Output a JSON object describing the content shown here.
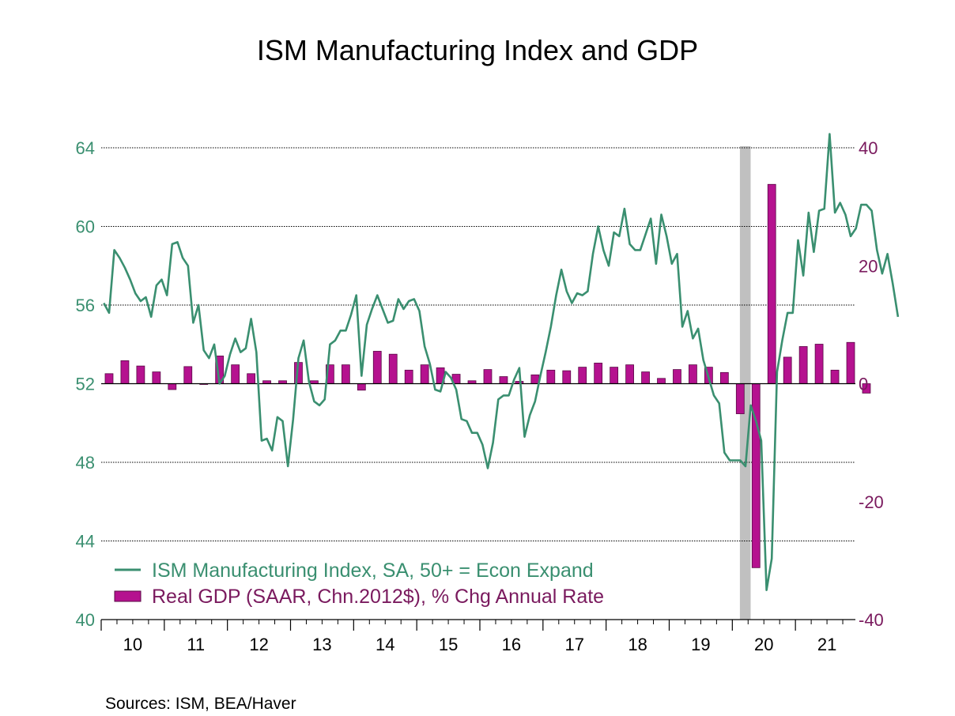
{
  "colors": {
    "ism": "#3a8f70",
    "gdp_fill": "#b5128f",
    "gdp_stroke": "#5a0a46",
    "right_axis": "#7a1a5e",
    "recession": "#c0c0c0",
    "grid": "#000000"
  },
  "chart_data": {
    "type": "line+bar",
    "title": "ISM Manufacturing Index and GDP",
    "source": "Sources:  ISM, BEA/Haver",
    "x_tick_labels": [
      "10",
      "11",
      "12",
      "13",
      "14",
      "15",
      "16",
      "17",
      "18",
      "19",
      "20",
      "21"
    ],
    "x_range_years": [
      2010.0,
      2021.95
    ],
    "recession": {
      "start": 2020.12,
      "end": 2020.29
    },
    "left_axis": {
      "ticks": [
        "40",
        "44",
        "48",
        "52",
        "56",
        "60",
        "64"
      ],
      "range": [
        40,
        64
      ]
    },
    "right_axis": {
      "ticks": [
        "-40",
        "-20",
        "0",
        "20",
        "40"
      ],
      "range": [
        -40,
        40
      ]
    },
    "series": [
      {
        "name": "ISM Manufacturing Index, SA, 50+ = Econ Expand",
        "axis": "left",
        "type": "line",
        "start": 2010.0,
        "step_months": 1,
        "values": [
          56.1,
          55.6,
          58.8,
          58.4,
          57.9,
          57.3,
          56.6,
          56.2,
          56.4,
          55.4,
          57.0,
          57.3,
          56.5,
          59.1,
          59.2,
          58.4,
          58.0,
          55.1,
          56.0,
          53.7,
          53.3,
          54.0,
          52.0,
          52.4,
          53.5,
          54.3,
          53.6,
          53.8,
          55.3,
          53.6,
          49.1,
          49.2,
          48.6,
          50.3,
          50.1,
          47.8,
          50.2,
          53.3,
          54.2,
          52.1,
          51.1,
          50.9,
          51.2,
          54.0,
          54.2,
          54.7,
          54.7,
          55.5,
          56.5,
          52.4,
          55.0,
          55.8,
          56.5,
          55.8,
          55.1,
          55.2,
          56.3,
          55.8,
          56.2,
          56.3,
          55.7,
          53.9,
          53.0,
          51.7,
          51.6,
          52.6,
          52.3,
          51.7,
          50.2,
          50.1,
          49.5,
          49.5,
          48.9,
          47.7,
          49.0,
          51.2,
          51.4,
          51.4,
          52.2,
          52.8,
          49.3,
          50.4,
          51.1,
          52.4,
          53.6,
          54.9,
          56.5,
          57.8,
          56.7,
          56.1,
          56.6,
          56.5,
          56.7,
          58.6,
          60.0,
          58.8,
          58.0,
          59.7,
          59.5,
          60.9,
          59.1,
          58.8,
          58.8,
          59.6,
          60.4,
          58.1,
          60.6,
          59.5,
          58.1,
          58.6,
          54.9,
          55.7,
          54.3,
          54.8,
          53.2,
          52.3,
          51.4,
          51.0,
          48.5,
          48.1,
          48.1,
          48.1,
          47.8,
          50.9,
          50.1,
          49.1,
          41.5,
          43.1,
          52.6,
          54.2,
          55.6,
          55.6,
          59.3,
          57.5,
          60.7,
          58.7,
          60.8,
          60.9,
          64.7,
          60.7,
          61.2,
          60.6,
          59.5,
          59.9,
          61.1,
          61.1,
          60.8,
          58.8,
          57.6,
          58.6,
          57.1,
          55.4
        ]
      },
      {
        "name": "Real GDP (SAAR, Chn.2012$), % Chg Annual Rate",
        "axis": "right",
        "type": "bar",
        "start": 2010.0,
        "step_months": 3,
        "values": [
          1.7,
          3.9,
          3.0,
          2.0,
          -1.0,
          2.9,
          -0.1,
          4.7,
          3.2,
          1.7,
          0.5,
          0.5,
          3.6,
          0.5,
          3.2,
          3.2,
          -1.1,
          5.5,
          5.0,
          2.3,
          3.2,
          2.7,
          1.6,
          0.5,
          2.4,
          1.2,
          0.4,
          1.5,
          2.3,
          2.2,
          2.8,
          3.5,
          2.8,
          3.2,
          2.0,
          0.9,
          2.4,
          3.2,
          2.8,
          1.9,
          -5.1,
          -31.2,
          33.8,
          4.5,
          6.3,
          6.7,
          2.3,
          7.0,
          -1.6
        ]
      }
    ]
  }
}
